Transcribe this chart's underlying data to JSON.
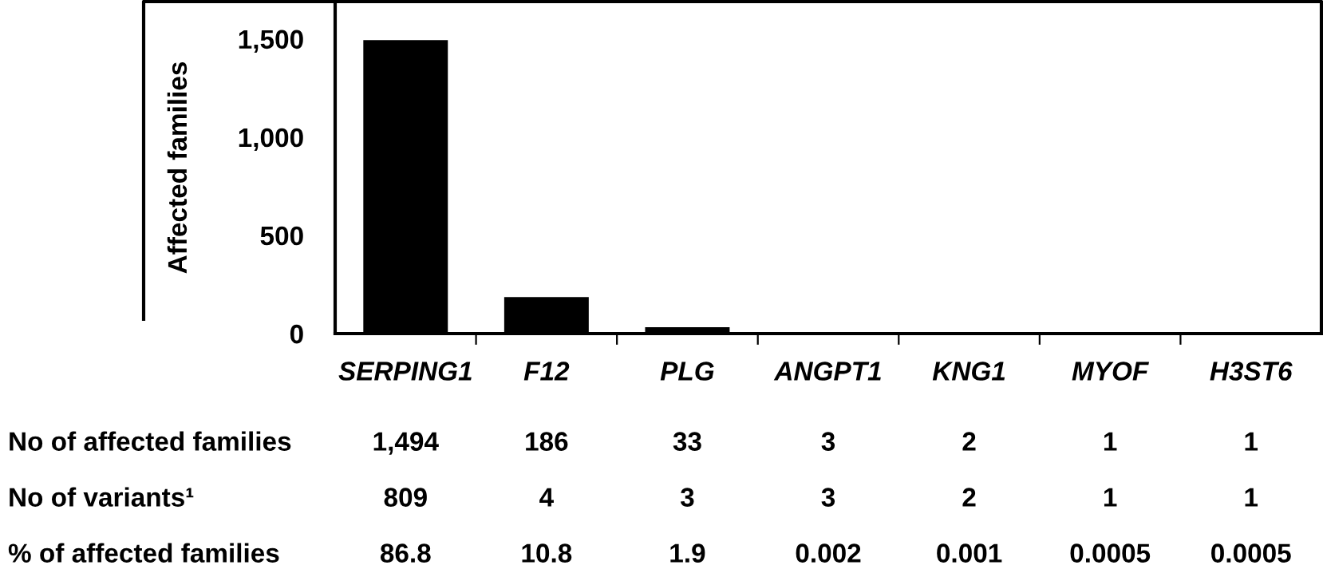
{
  "chart_data": {
    "type": "bar",
    "ylabel": "Affected families",
    "categories": [
      "SERPING1",
      "F12",
      "PLG",
      "ANGPT1",
      "KNG1",
      "MYOF",
      "H3ST6"
    ],
    "values": [
      1494,
      186,
      33,
      3,
      2,
      1,
      1
    ],
    "value_labels": [
      "1,494",
      "186",
      "33",
      "3",
      "2",
      "1",
      "1"
    ],
    "color": "#000000",
    "ylim": [
      0,
      1690
    ],
    "yticks": [
      0,
      {
        "value": 500,
        "label": "500"
      },
      {
        "value": 1000,
        "label": "1,000"
      },
      {
        "value": 1500,
        "label": "1,500"
      }
    ],
    "grid": false,
    "annotations": [
      "No of affected families",
      "No of variants¹",
      "% of affected families",
      "809",
      "4",
      "3",
      "3",
      "2",
      "1",
      "1",
      "86.8",
      "10.8",
      "1.9",
      "0.002",
      "0.001",
      "0.0005",
      "0.0005"
    ]
  }
}
